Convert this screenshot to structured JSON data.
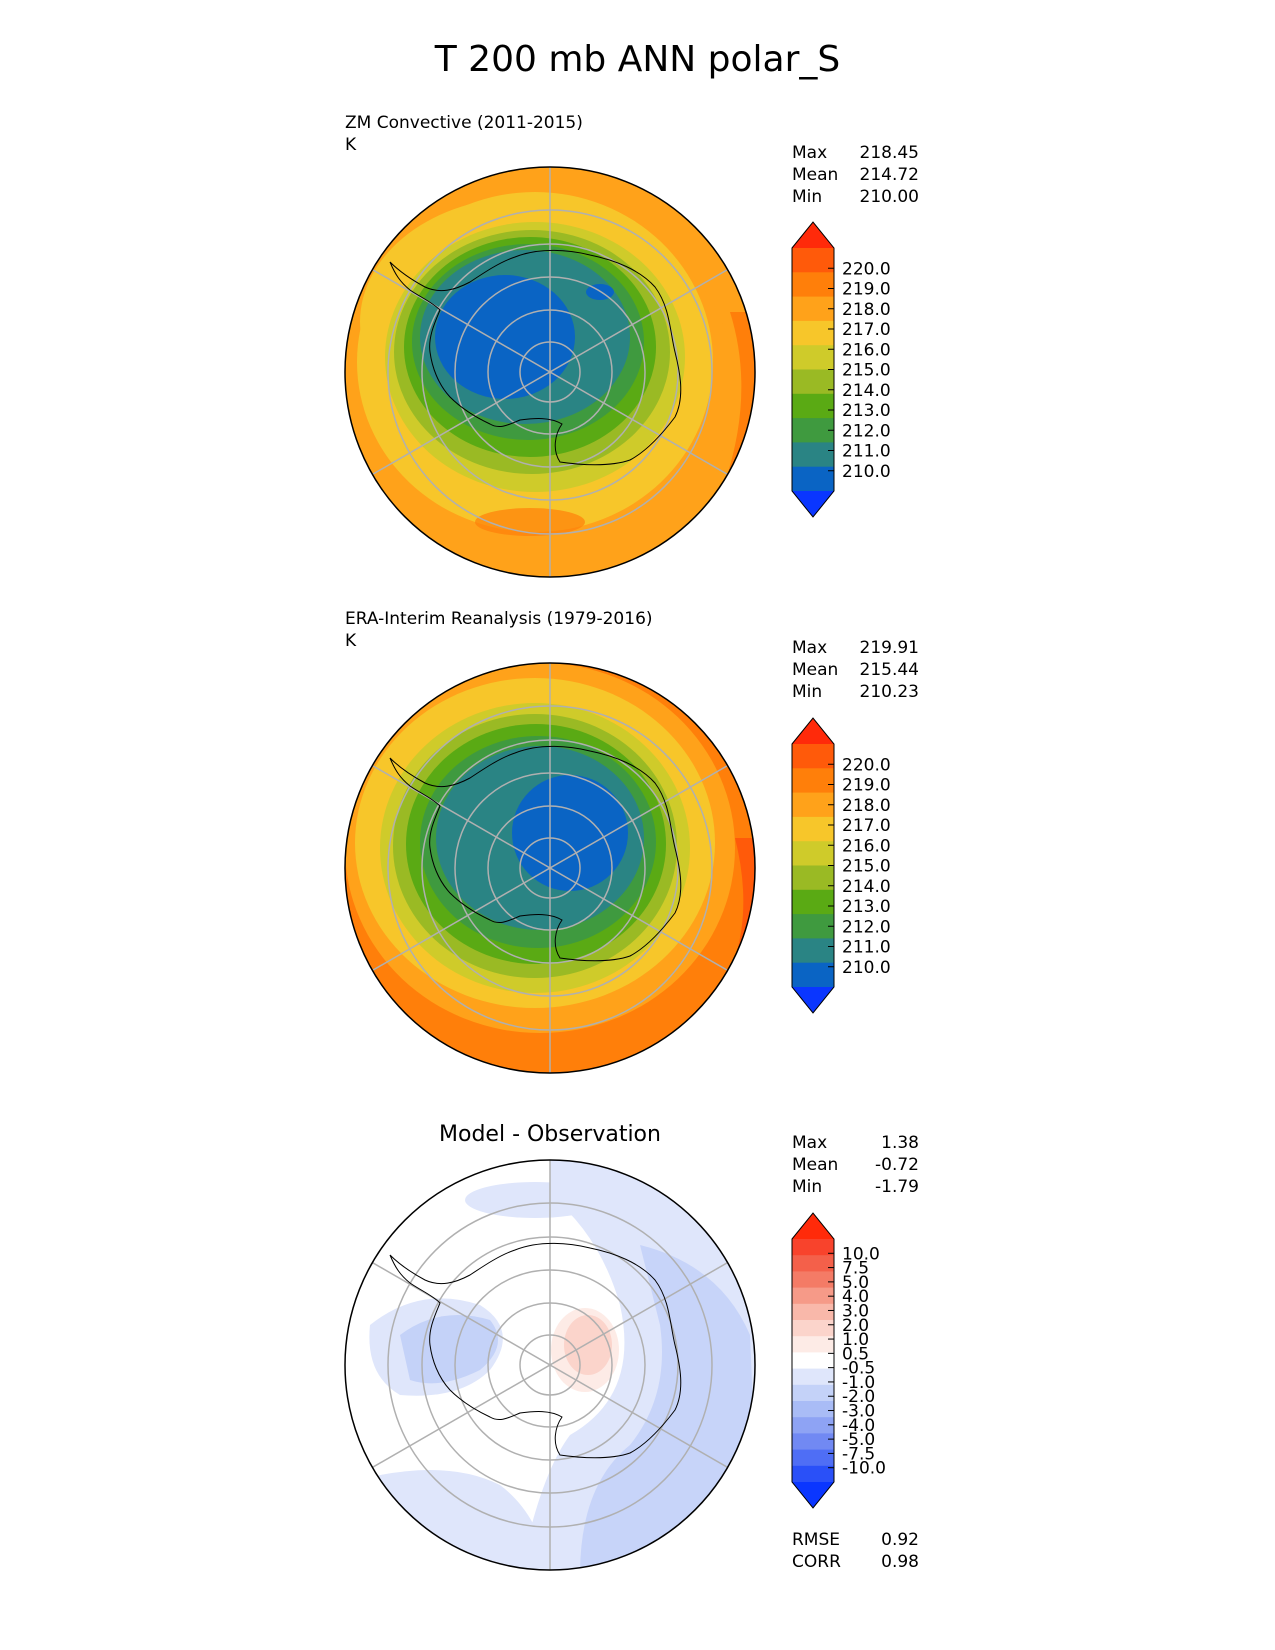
{
  "figure": {
    "title": "T 200 mb ANN polar_S"
  },
  "panels": [
    {
      "id": "test",
      "title": "ZM Convective (2011-2015)",
      "units": "K",
      "stats": [
        {
          "label": "Max",
          "value": "218.45"
        },
        {
          "label": "Mean",
          "value": "214.72"
        },
        {
          "label": "Min",
          "value": "210.00"
        }
      ],
      "colorbar": {
        "ticks": [
          "220.0",
          "219.0",
          "218.0",
          "217.0",
          "216.0",
          "215.0",
          "214.0",
          "213.0",
          "212.0",
          "211.0",
          "210.0"
        ],
        "colors": [
          "#ff2a0a",
          "#ff5a0a",
          "#ff7f0a",
          "#ffa21a",
          "#f7c62a",
          "#cfcb2a",
          "#9aba24",
          "#5aaa14",
          "#3f9a3f",
          "#2a8484",
          "#0a64c4",
          "#0a36ff"
        ]
      }
    },
    {
      "id": "ref",
      "title": "ERA-Interim Reanalysis (1979-2016)",
      "units": "K",
      "stats": [
        {
          "label": "Max",
          "value": "219.91"
        },
        {
          "label": "Mean",
          "value": "215.44"
        },
        {
          "label": "Min",
          "value": "210.23"
        }
      ],
      "colorbar": {
        "ticks": [
          "220.0",
          "219.0",
          "218.0",
          "217.0",
          "216.0",
          "215.0",
          "214.0",
          "213.0",
          "212.0",
          "211.0",
          "210.0"
        ],
        "colors": [
          "#ff2a0a",
          "#ff5a0a",
          "#ff7f0a",
          "#ffa21a",
          "#f7c62a",
          "#cfcb2a",
          "#9aba24",
          "#5aaa14",
          "#3f9a3f",
          "#2a8484",
          "#0a64c4",
          "#0a36ff"
        ]
      }
    },
    {
      "id": "diff",
      "title": "Model - Observation",
      "stats": [
        {
          "label": "Max",
          "value": "1.38"
        },
        {
          "label": "Mean",
          "value": "-0.72"
        },
        {
          "label": "Min",
          "value": "-1.79"
        }
      ],
      "metrics": [
        {
          "label": "RMSE",
          "value": "0.92"
        },
        {
          "label": "CORR",
          "value": "0.98"
        }
      ],
      "colorbar": {
        "ticks": [
          "10.0",
          "7.5",
          "5.0",
          "4.0",
          "3.0",
          "2.0",
          "1.0",
          "0.5",
          "-0.5",
          "-1.0",
          "-2.0",
          "-3.0",
          "-4.0",
          "-5.0",
          "-7.5",
          "-10.0"
        ],
        "colors": [
          "#ff2a0a",
          "#f8432c",
          "#f4604a",
          "#f47b66",
          "#f69a88",
          "#f9b8aa",
          "#fbd4cb",
          "#fdebe6",
          "#ffffff",
          "#dfe6fb",
          "#c4d2f8",
          "#a9bcf6",
          "#8ea3f4",
          "#7189f3",
          "#4f6ef5",
          "#2a50f8",
          "#0a36ff"
        ]
      }
    }
  ],
  "chart_data": [
    {
      "type": "heatmap",
      "title": "ZM Convective (2011-2015)",
      "units": "K",
      "projection": "south polar stereographic",
      "field": "T 200 mb ANN",
      "levels": [
        210.0,
        211.0,
        212.0,
        213.0,
        214.0,
        215.0,
        216.0,
        217.0,
        218.0,
        219.0,
        220.0
      ],
      "stats": {
        "max": 218.45,
        "mean": 214.72,
        "min": 210.0
      },
      "grid": true
    },
    {
      "type": "heatmap",
      "title": "ERA-Interim Reanalysis (1979-2016)",
      "units": "K",
      "projection": "south polar stereographic",
      "field": "T 200 mb ANN",
      "levels": [
        210.0,
        211.0,
        212.0,
        213.0,
        214.0,
        215.0,
        216.0,
        217.0,
        218.0,
        219.0,
        220.0
      ],
      "stats": {
        "max": 219.91,
        "mean": 215.44,
        "min": 210.23
      },
      "grid": true
    },
    {
      "type": "heatmap",
      "title": "Model - Observation",
      "projection": "south polar stereographic",
      "levels": [
        -10.0,
        -7.5,
        -5.0,
        -4.0,
        -3.0,
        -2.0,
        -1.0,
        -0.5,
        0.5,
        1.0,
        2.0,
        3.0,
        4.0,
        5.0,
        7.5,
        10.0
      ],
      "stats": {
        "max": 1.38,
        "mean": -0.72,
        "min": -1.79
      },
      "metrics": {
        "rmse": 0.92,
        "corr": 0.98
      },
      "grid": true
    }
  ]
}
